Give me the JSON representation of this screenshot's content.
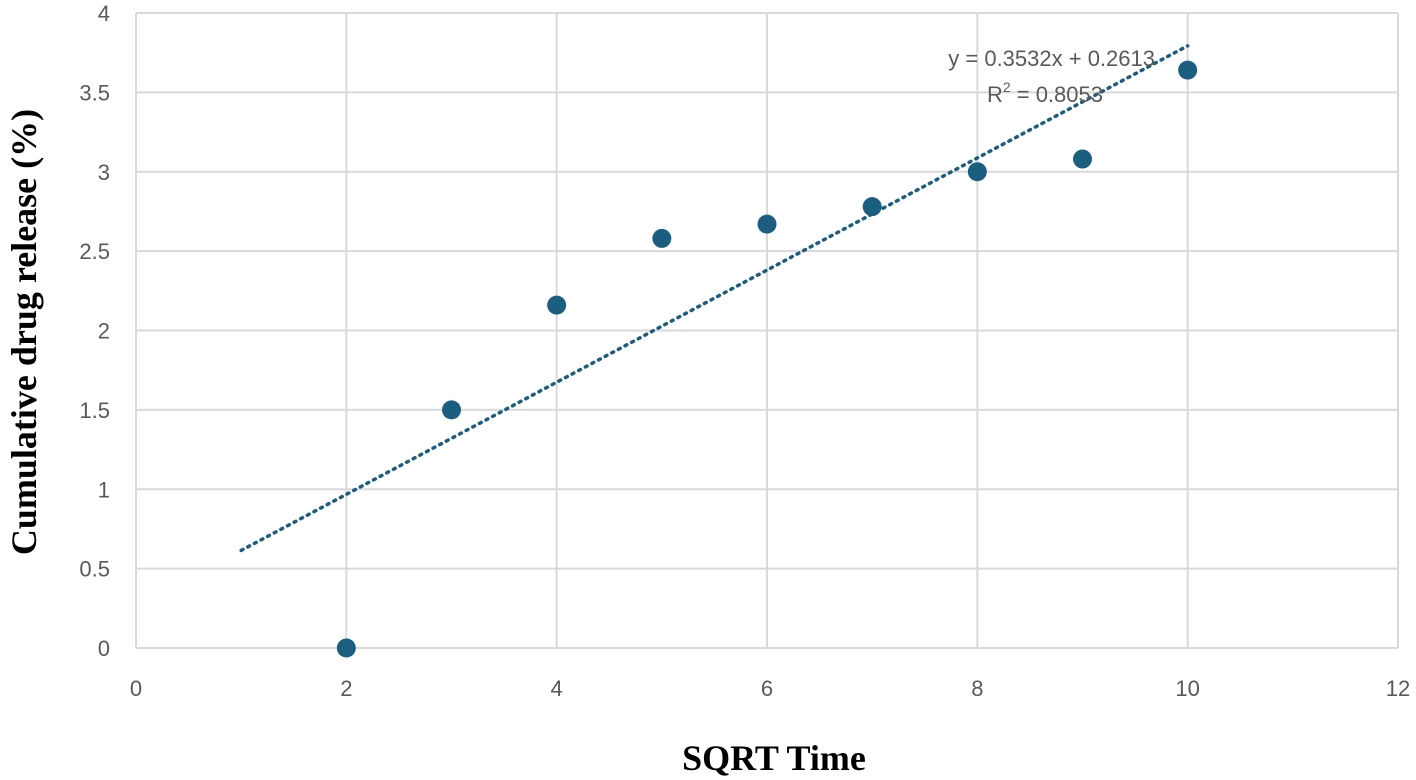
{
  "chart_data": {
    "type": "scatter",
    "title": "",
    "xlabel": "SQRT Time",
    "ylabel": "Cumulative drug release (%)",
    "xlim": [
      0,
      12
    ],
    "ylim": [
      0,
      4
    ],
    "xticks": [
      "0",
      "2",
      "4",
      "6",
      "8",
      "10",
      "12"
    ],
    "yticks": [
      "0",
      "0.5",
      "1",
      "1.5",
      "2",
      "2.5",
      "3",
      "3.5",
      "4"
    ],
    "grid": true,
    "series": [
      {
        "name": "Cumulative drug release",
        "x": [
          2,
          3,
          4,
          5,
          6,
          7,
          8,
          9,
          10
        ],
        "y": [
          0.0,
          1.5,
          2.16,
          2.58,
          2.67,
          2.78,
          3.0,
          3.08,
          3.64
        ],
        "color": "#1b5e80"
      }
    ],
    "trendline": {
      "type": "linear",
      "slope": 0.3532,
      "intercept": 0.2613,
      "x_range": [
        1,
        10
      ],
      "style": "dotted",
      "color": "#1b5e80",
      "equation_label": "y = 0.3532x + 0.2613",
      "r2_prefix": "R",
      "r2_superscript": "2",
      "r2_value_text": " = 0.8053"
    }
  }
}
